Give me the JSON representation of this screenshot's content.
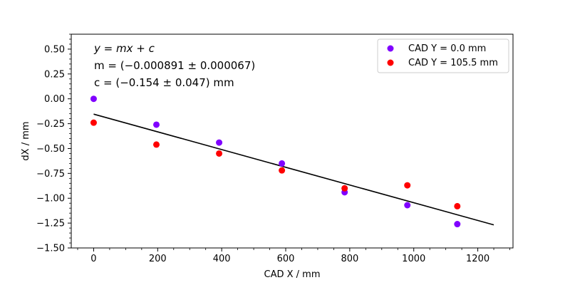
{
  "chart_data": {
    "type": "scatter",
    "xlabel": "CAD X / mm",
    "ylabel": "dX / mm",
    "xlim": [
      -70,
      1310
    ],
    "ylim": [
      -1.5,
      0.65
    ],
    "xticks": [
      0,
      200,
      400,
      600,
      800,
      1000,
      1200
    ],
    "xtick_labels": [
      "0",
      "200",
      "400",
      "600",
      "800",
      "1000",
      "1200"
    ],
    "yticks": [
      0.5,
      0.25,
      0.0,
      -0.25,
      -0.5,
      -0.75,
      -1.0,
      -1.25,
      -1.5
    ],
    "ytick_labels": [
      "0.50",
      "0.25",
      "0.00",
      "−0.25",
      "−0.50",
      "−0.75",
      "−1.00",
      "−1.25",
      "−1.50"
    ],
    "grid": false,
    "legend_position": "top-right",
    "series": [
      {
        "name": "CAD Y = 0.0 mm",
        "color": "#8000ff",
        "points": [
          [
            0,
            0.0
          ],
          [
            196,
            -0.26
          ],
          [
            392,
            -0.44
          ],
          [
            588,
            -0.65
          ],
          [
            784,
            -0.94
          ],
          [
            980,
            -1.07
          ],
          [
            1136,
            -1.26
          ]
        ]
      },
      {
        "name": "CAD Y = 105.5 mm",
        "color": "#ff0000",
        "points": [
          [
            0,
            -0.24
          ],
          [
            196,
            -0.46
          ],
          [
            392,
            -0.55
          ],
          [
            588,
            -0.72
          ],
          [
            784,
            -0.9
          ],
          [
            980,
            -0.87
          ],
          [
            1136,
            -1.08
          ]
        ]
      }
    ],
    "fit": {
      "slope": -0.000891,
      "intercept": -0.154,
      "x_range": [
        0,
        1250
      ],
      "color": "#000000"
    },
    "annotations": {
      "equation": "y = mx + c",
      "slope_text": "m = (−0.000891 ± 0.000067)",
      "intercept_text": "c = (−0.154 ± 0.047) mm"
    }
  }
}
